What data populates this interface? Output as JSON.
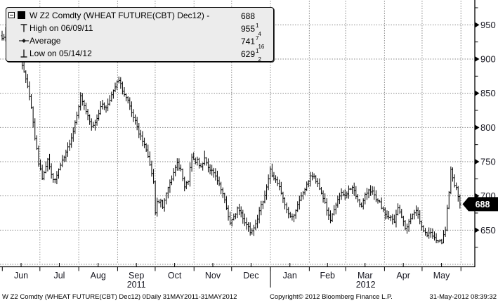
{
  "legend": {
    "rows": [
      {
        "icon": "series-swatch",
        "label": "W Z2 Comdty (WHEAT FUTURE(CBT) Dec12) -",
        "value": {
          "int": "688",
          "num": "",
          "den": ""
        }
      },
      {
        "icon": "high-marker",
        "label": "High on 06/09/11",
        "value": {
          "int": "955",
          "num": "1",
          "den": "4"
        }
      },
      {
        "icon": "average-marker",
        "label": "Average",
        "value": {
          "int": "741",
          "num": "7",
          "den": "16"
        }
      },
      {
        "icon": "low-marker",
        "label": "Low on 05/14/12",
        "value": {
          "int": "629",
          "num": "1",
          "den": "2"
        }
      }
    ]
  },
  "footer": {
    "description": "W Z2 Comdty (WHEAT FUTURE(CBT) Dec12) 0Daily 31MAY2011-31MAY2012",
    "copyright": "Copyright© 2012 Bloomberg Finance L.P.",
    "timestamp": "31-May-2012 08:39:32"
  },
  "chart_data": {
    "type": "bar",
    "subtype": "ohlc_daily_bars",
    "security": "W Z2 Comdty",
    "security_name": "WHEAT FUTURE(CBT) Dec12",
    "period": "Daily",
    "date_range": "31MAY2011-31MAY2012",
    "last_price": 688,
    "last_price_label": "688",
    "high": {
      "date": "06/09/11",
      "value": 955.25
    },
    "average": 741.4375,
    "low": {
      "date": "05/14/12",
      "value": 629.5
    },
    "bar_count": 252,
    "grid": "dotted",
    "colors": {
      "bars": "#000000",
      "grid": "#8a8a8a",
      "axis": "#000000",
      "label": "#15151f",
      "tag_bg": "#000000",
      "tag_text": "#ffffff"
    },
    "y_axis": {
      "side": "right",
      "min": 600,
      "max": 975,
      "major_ticks": [
        650,
        700,
        750,
        800,
        850,
        900,
        950
      ],
      "minor_tick_step": 25
    },
    "x_axis": {
      "months": [
        "Jun",
        "Jul",
        "Aug",
        "Sep",
        "Oct",
        "Nov",
        "Dec",
        "Jan",
        "Feb",
        "Mar",
        "Apr",
        "May"
      ],
      "month_days": [
        30,
        31,
        31,
        30,
        31,
        30,
        31,
        31,
        29,
        31,
        30,
        31
      ],
      "years": [
        {
          "label": "2011",
          "from_month": 0,
          "to_month": 6
        },
        {
          "label": "2012",
          "from_month": 7,
          "to_month": 11
        }
      ]
    },
    "close_anchors": [
      [
        0,
        930
      ],
      [
        2,
        938
      ],
      [
        4,
        944
      ],
      [
        6,
        948
      ],
      [
        7,
        951
      ],
      [
        8,
        935
      ],
      [
        10,
        905
      ],
      [
        12,
        880
      ],
      [
        14,
        862
      ],
      [
        16,
        830
      ],
      [
        18,
        785
      ],
      [
        20,
        748
      ],
      [
        22,
        727
      ],
      [
        24,
        745
      ],
      [
        25,
        755
      ],
      [
        27,
        730
      ],
      [
        29,
        722
      ],
      [
        31,
        738
      ],
      [
        33,
        750
      ],
      [
        35,
        762
      ],
      [
        37,
        778
      ],
      [
        39,
        795
      ],
      [
        41,
        820
      ],
      [
        43,
        845
      ],
      [
        45,
        832
      ],
      [
        47,
        815
      ],
      [
        49,
        800
      ],
      [
        51,
        808
      ],
      [
        53,
        822
      ],
      [
        55,
        835
      ],
      [
        57,
        828
      ],
      [
        59,
        842
      ],
      [
        61,
        852
      ],
      [
        63,
        866
      ],
      [
        64,
        868
      ],
      [
        65,
        862
      ],
      [
        67,
        848
      ],
      [
        69,
        838
      ],
      [
        71,
        820
      ],
      [
        73,
        808
      ],
      [
        75,
        790
      ],
      [
        77,
        782
      ],
      [
        79,
        768
      ],
      [
        81,
        745
      ],
      [
        83,
        718
      ],
      [
        84,
        675
      ],
      [
        85,
        690
      ],
      [
        87,
        692
      ],
      [
        88,
        682
      ],
      [
        90,
        705
      ],
      [
        92,
        722
      ],
      [
        94,
        732
      ],
      [
        96,
        748
      ],
      [
        98,
        738
      ],
      [
        100,
        712
      ],
      [
        102,
        722
      ],
      [
        104,
        756
      ],
      [
        106,
        748
      ],
      [
        107,
        752
      ],
      [
        109,
        740
      ],
      [
        111,
        755
      ],
      [
        112,
        750
      ],
      [
        113,
        742
      ],
      [
        115,
        736
      ],
      [
        117,
        728
      ],
      [
        119,
        715
      ],
      [
        121,
        702
      ],
      [
        123,
        682
      ],
      [
        125,
        660
      ],
      [
        127,
        668
      ],
      [
        129,
        682
      ],
      [
        131,
        675
      ],
      [
        133,
        662
      ],
      [
        135,
        655
      ],
      [
        136,
        648
      ],
      [
        138,
        655
      ],
      [
        140,
        668
      ],
      [
        142,
        685
      ],
      [
        144,
        702
      ],
      [
        146,
        725
      ],
      [
        147,
        738
      ],
      [
        148,
        730
      ],
      [
        150,
        722
      ],
      [
        152,
        712
      ],
      [
        154,
        695
      ],
      [
        156,
        680
      ],
      [
        158,
        670
      ],
      [
        159,
        668
      ],
      [
        161,
        680
      ],
      [
        163,
        692
      ],
      [
        165,
        705
      ],
      [
        167,
        715
      ],
      [
        169,
        730
      ],
      [
        171,
        727
      ],
      [
        173,
        716
      ],
      [
        175,
        704
      ],
      [
        177,
        690
      ],
      [
        179,
        670
      ],
      [
        180,
        664
      ],
      [
        182,
        678
      ],
      [
        184,
        695
      ],
      [
        186,
        703
      ],
      [
        188,
        700
      ],
      [
        190,
        709
      ],
      [
        192,
        712
      ],
      [
        194,
        700
      ],
      [
        196,
        690
      ],
      [
        197,
        684
      ],
      [
        199,
        700
      ],
      [
        201,
        710
      ],
      [
        203,
        706
      ],
      [
        205,
        693
      ],
      [
        207,
        689
      ],
      [
        209,
        678
      ],
      [
        211,
        670
      ],
      [
        213,
        668
      ],
      [
        215,
        661
      ],
      [
        217,
        682
      ],
      [
        219,
        670
      ],
      [
        221,
        652
      ],
      [
        223,
        661
      ],
      [
        225,
        673
      ],
      [
        227,
        677
      ],
      [
        229,
        664
      ],
      [
        231,
        650
      ],
      [
        233,
        643
      ],
      [
        235,
        645
      ],
      [
        237,
        637
      ],
      [
        239,
        634
      ],
      [
        241,
        631
      ],
      [
        242,
        642
      ],
      [
        243,
        651
      ],
      [
        244,
        680
      ],
      [
        245,
        703
      ],
      [
        246,
        737
      ],
      [
        247,
        729
      ],
      [
        248,
        717
      ],
      [
        249,
        711
      ],
      [
        250,
        701
      ],
      [
        251,
        688
      ]
    ],
    "pinned_bars": [
      {
        "t": 7,
        "high": 955.25
      },
      {
        "t": 111,
        "high": 766
      },
      {
        "t": 241,
        "low": 629.5
      },
      {
        "t": 246,
        "high": 743
      }
    ]
  }
}
